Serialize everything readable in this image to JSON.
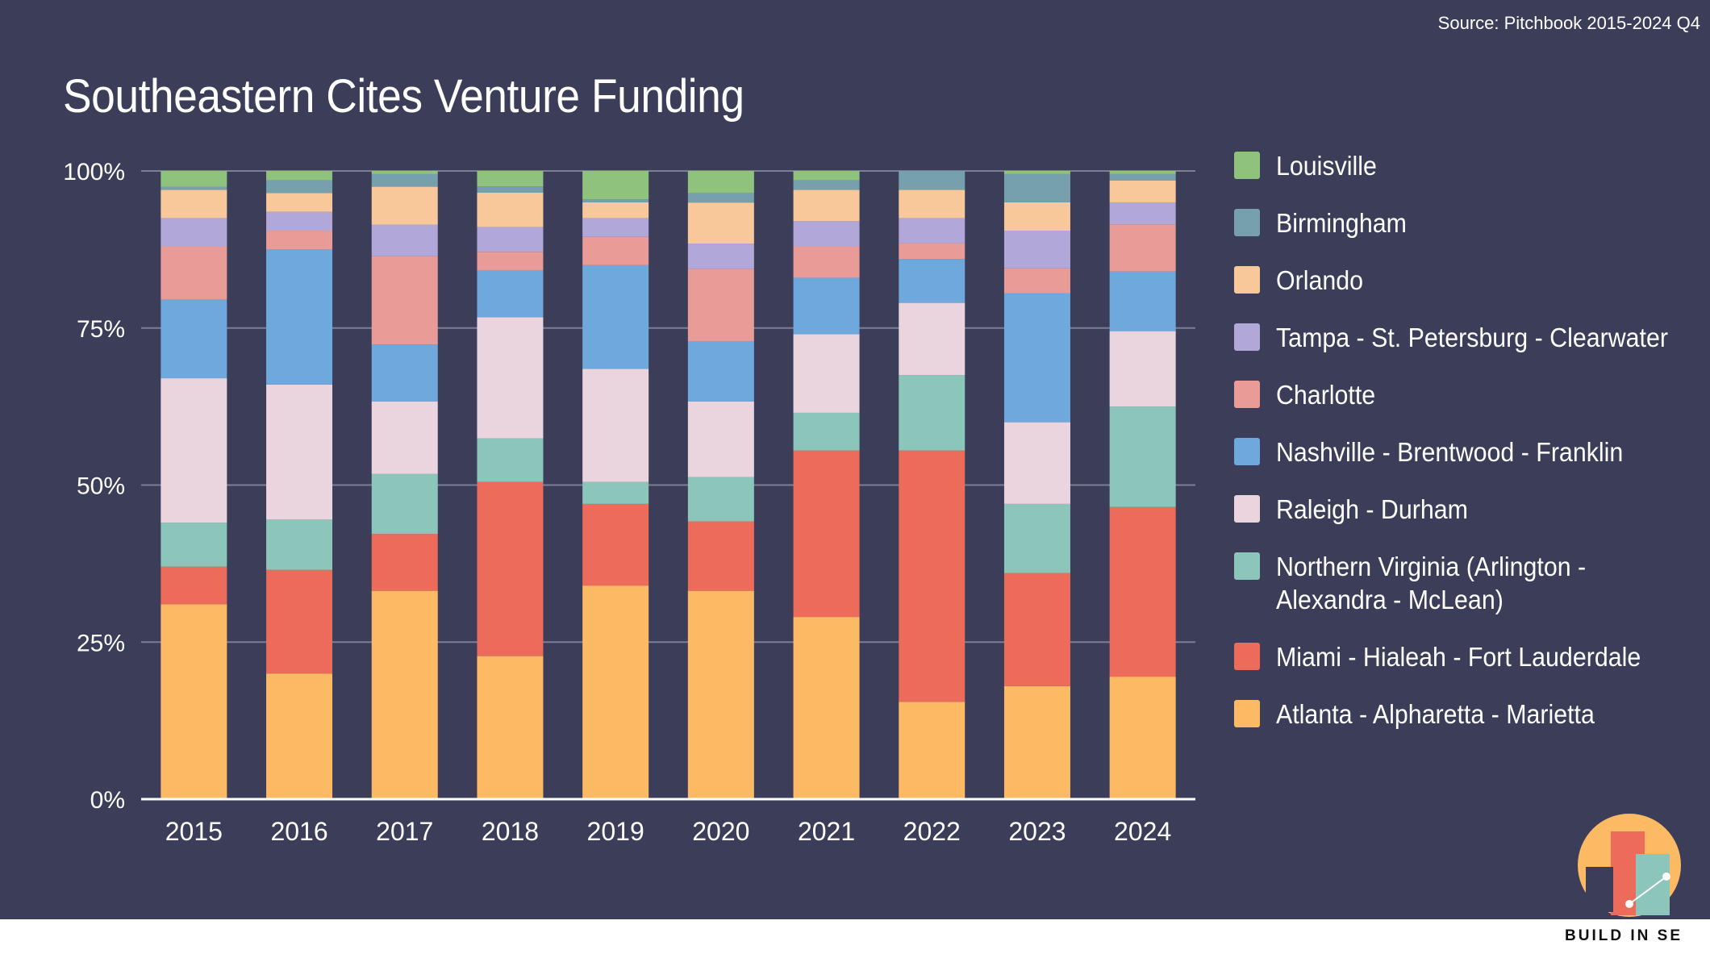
{
  "source": "Source: Pitchbook 2015-2024 Q4",
  "brand": "BUILD IN SE",
  "chart_data": {
    "type": "bar",
    "stacked": true,
    "normalized": true,
    "title": "Southeastern Cites Venture Funding",
    "xlabel": "",
    "ylabel": "",
    "ylim": [
      0,
      100
    ],
    "y_ticks": [
      "0%",
      "25%",
      "50%",
      "75%",
      "100%"
    ],
    "grid": true,
    "legend_position": "right",
    "categories": [
      "2015",
      "2016",
      "2017",
      "2018",
      "2019",
      "2020",
      "2021",
      "2022",
      "2023",
      "2024"
    ],
    "series": [
      {
        "name": "Atlanta - Alpharetta - Marietta",
        "color": "#fbba63",
        "values": [
          31,
          20,
          33,
          23,
          34,
          33,
          29,
          15.5,
          18,
          19.5
        ]
      },
      {
        "name": "Miami - Hialeah - Fort Lauderdale",
        "color": "#ed6b5b",
        "values": [
          6,
          16.5,
          9,
          28,
          13,
          11,
          26.5,
          40,
          18,
          27
        ]
      },
      {
        "name": "Northern Virginia (Arlington - Alexandra - McLean)",
        "color": "#8cc6bb",
        "values": [
          7,
          8,
          9.5,
          7,
          3.5,
          7,
          6,
          12,
          11,
          16
        ]
      },
      {
        "name": "Raleigh - Durham",
        "color": "#ead5df",
        "values": [
          23,
          21.5,
          11.5,
          19.5,
          18,
          12,
          12.5,
          11.5,
          13,
          12
        ]
      },
      {
        "name": "Nashville - Brentwood - Franklin",
        "color": "#6fa8dc",
        "values": [
          12.5,
          21.5,
          9,
          7.5,
          16.5,
          9.5,
          9,
          7,
          20.5,
          9.5
        ]
      },
      {
        "name": "Charlotte",
        "color": "#e89b97",
        "values": [
          8.5,
          3,
          14,
          3,
          4.5,
          11.5,
          5,
          2.5,
          4,
          7.5
        ]
      },
      {
        "name": "Tampa - St. Petersburg - Clearwater",
        "color": "#b1a7d8",
        "values": [
          4.5,
          3,
          5,
          4,
          3,
          4,
          4,
          4,
          6,
          3.5
        ]
      },
      {
        "name": "Orlando",
        "color": "#f8c89b",
        "values": [
          4.5,
          3,
          6,
          5.5,
          2.5,
          6.5,
          5,
          4.5,
          4.5,
          3.5
        ]
      },
      {
        "name": "Birmingham",
        "color": "#77a0ad",
        "values": [
          0.5,
          2,
          2,
          1,
          0.5,
          1.5,
          1.5,
          3,
          4.5,
          1
        ]
      },
      {
        "name": "Louisville",
        "color": "#8fc27c",
        "values": [
          2.5,
          1.5,
          0.5,
          2.5,
          4.5,
          3.5,
          1.5,
          0,
          0.5,
          0.5
        ]
      }
    ]
  }
}
